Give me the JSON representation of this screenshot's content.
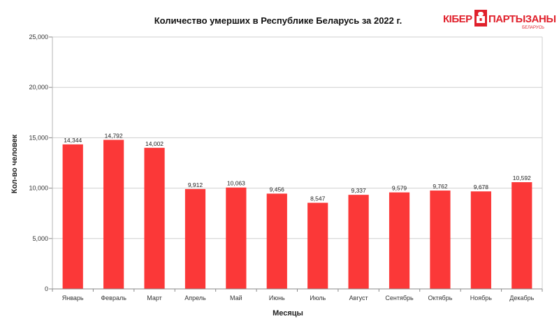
{
  "logo": {
    "word1": "КІБЕР",
    "word2": "ПАРТЫЗАНЫ",
    "sub": "БЕЛАРУСЬ",
    "color": "#e0202b"
  },
  "chart_data": {
    "type": "bar",
    "title": "Количество умерших в Республике Беларусь за 2022 г.",
    "xlabel": "Месяцы",
    "ylabel": "Кол-во человек",
    "categories": [
      "Январь",
      "Февраль",
      "Март",
      "Апрель",
      "Май",
      "Июнь",
      "Июль",
      "Август",
      "Сентябрь",
      "Октябрь",
      "Ноябрь",
      "Декабрь"
    ],
    "values": [
      14344,
      14792,
      14002,
      9912,
      10063,
      9456,
      8547,
      9337,
      9579,
      9762,
      9678,
      10592
    ],
    "value_labels": [
      "14,344",
      "14,792",
      "14,002",
      "9,912",
      "10,063",
      "9,456",
      "8,547",
      "9,337",
      "9,579",
      "9,762",
      "9,678",
      "10,592"
    ],
    "yticks": [
      0,
      5000,
      10000,
      15000,
      20000,
      25000
    ],
    "ytick_labels": [
      "0",
      "5,000",
      "10,000",
      "15,000",
      "20,000",
      "25,000"
    ],
    "ylim": [
      0,
      25000
    ],
    "grid": true,
    "bar_color": "#fb3838"
  }
}
